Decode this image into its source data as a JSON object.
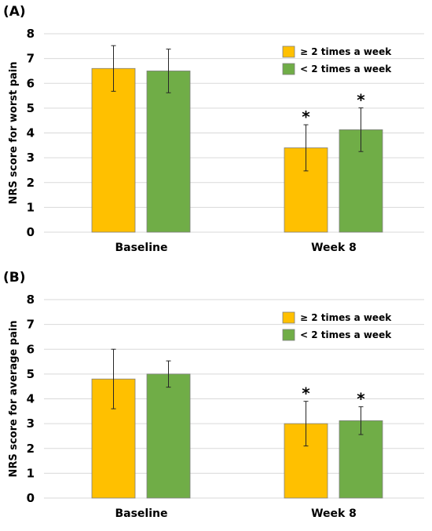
{
  "chart_data": [
    {
      "panel": "(A)",
      "type": "bar",
      "ylabel": "NRS score for worst pain",
      "ylim": [
        0,
        8
      ],
      "yticks": [
        0,
        1,
        2,
        3,
        4,
        5,
        6,
        7,
        8
      ],
      "grid": true,
      "legend_position": "top-right",
      "categories": [
        "Baseline",
        "Week 8"
      ],
      "series": [
        {
          "name": "≥ 2 times a week",
          "color": "#FFC000",
          "values": [
            6.6,
            3.4
          ],
          "errors": [
            0.92,
            0.93
          ],
          "significant": [
            false,
            true
          ]
        },
        {
          "name": "< 2 times a week",
          "color": "#70AD47",
          "values": [
            6.5,
            4.13
          ],
          "errors": [
            0.88,
            0.88
          ],
          "significant": [
            false,
            true
          ]
        }
      ],
      "annotation_symbol": "*"
    },
    {
      "panel": "(B)",
      "type": "bar",
      "ylabel": "NRS score for average pain",
      "ylim": [
        0,
        8
      ],
      "yticks": [
        0,
        1,
        2,
        3,
        4,
        5,
        6,
        7,
        8
      ],
      "grid": true,
      "legend_position": "top-right",
      "categories": [
        "Baseline",
        "Week 8"
      ],
      "series": [
        {
          "name": "≥ 2 times a week",
          "color": "#FFC000",
          "values": [
            4.8,
            3.0
          ],
          "errors": [
            1.2,
            0.9
          ],
          "significant": [
            false,
            true
          ]
        },
        {
          "name": "< 2 times a week",
          "color": "#70AD47",
          "values": [
            5.0,
            3.12
          ],
          "errors": [
            0.53,
            0.56
          ],
          "significant": [
            false,
            true
          ]
        }
      ],
      "annotation_symbol": "*"
    }
  ]
}
